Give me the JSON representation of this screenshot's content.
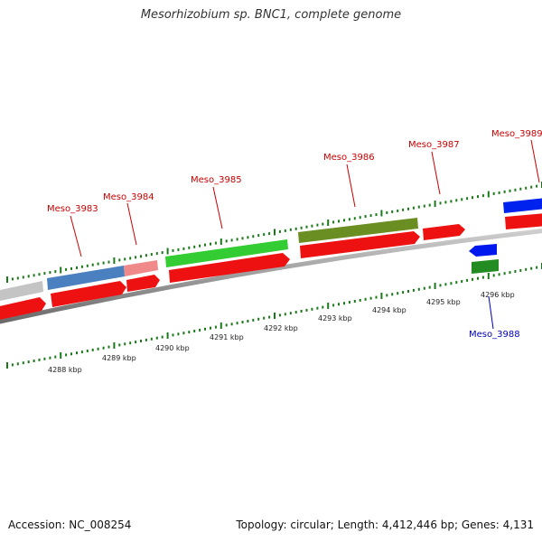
{
  "title": "Mesorhizobium sp. BNC1, complete genome",
  "footer": {
    "accession": "Accession: NC_008254",
    "summary": "Topology: circular; Length: 4,412,446 bp; Genes: 4,131"
  },
  "colors": {
    "cds": "#ee0000",
    "tick": "#1a7a1a",
    "label_forward": "#cc0000",
    "label_reverse": "#0000bb",
    "backbone": "#888888"
  },
  "scale": {
    "unit": "kbp",
    "labels": [
      "4288 kbp",
      "4289 kbp",
      "4290 kbp",
      "4291 kbp",
      "4292 kbp",
      "4293 kbp",
      "4294 kbp",
      "4295 kbp",
      "4296 kbp"
    ]
  },
  "genes": [
    {
      "name": "Meso_3983",
      "strand": "forward",
      "color": "#4a7fc0"
    },
    {
      "name": "Meso_3984",
      "strand": "forward",
      "color": "#f08a8a"
    },
    {
      "name": "Meso_3985",
      "strand": "forward",
      "color": "#33cc33"
    },
    {
      "name": "Meso_3986",
      "strand": "forward",
      "color": "#6b8e23"
    },
    {
      "name": "Meso_3987",
      "strand": "forward",
      "color": "#ee0000"
    },
    {
      "name": "Meso_3988",
      "strand": "reverse",
      "color": "#228b22"
    },
    {
      "name": "Meso_3989",
      "strand": "forward",
      "color": "#0022ee"
    }
  ]
}
